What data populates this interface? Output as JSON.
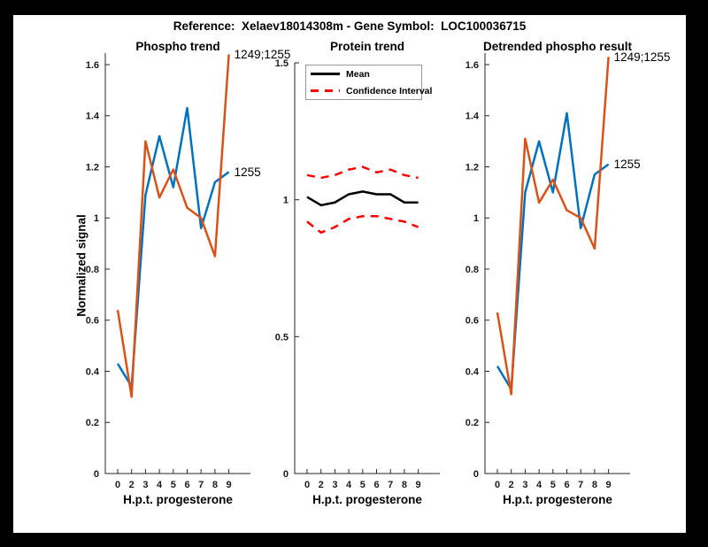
{
  "figure_title": "Reference:  Xelaev18014308m - Gene Symbol:  LOC100036715",
  "colors": {
    "blue": "#0072BD",
    "orange": "#D95319",
    "red": "#FF0000",
    "black": "#000000",
    "axis": "#262626",
    "frame": "#000000",
    "background": "#FFFFFF"
  },
  "legend": {
    "position": "northwest",
    "entries": [
      {
        "label": "Mean",
        "color_key": "black",
        "style": "solid"
      },
      {
        "label": "Confidence Interval",
        "color_key": "red",
        "style": "dashed"
      }
    ]
  },
  "chart_data": [
    {
      "type": "line",
      "title": "Phospho trend",
      "xlabel": "H.p.t. progesterone",
      "ylabel": "Normalized signal",
      "x": [
        0,
        2,
        3,
        4,
        5,
        6,
        7,
        8,
        9
      ],
      "x_tick_labels": [
        "0",
        "2",
        "3",
        "4",
        "5",
        "6",
        "7",
        "8",
        "9"
      ],
      "y_ticks": [
        0,
        0.2,
        0.4,
        0.6,
        0.8,
        1,
        1.2,
        1.4,
        1.6
      ],
      "y_tick_labels": [
        "0",
        "0.2",
        "0.4",
        "0.6",
        "0.8",
        "1",
        "1.2",
        "1.4",
        "1.6"
      ],
      "ylim": [
        0,
        1.645
      ],
      "grid": false,
      "series": [
        {
          "name": "phospho-site-1255",
          "color_key": "blue",
          "style": "solid",
          "end_label": "1255",
          "values": [
            0.43,
            0.34,
            1.09,
            1.32,
            1.12,
            1.43,
            0.96,
            1.14,
            1.18
          ]
        },
        {
          "name": "phospho-site-1249-1255",
          "color_key": "orange",
          "style": "solid",
          "end_label": "1249;1255",
          "values": [
            0.64,
            0.3,
            1.3,
            1.08,
            1.19,
            1.04,
            1.0,
            0.85,
            1.64
          ]
        }
      ]
    },
    {
      "type": "line",
      "title": "Protein trend",
      "xlabel": "H.p.t. progesterone",
      "ylabel": "",
      "x": [
        0,
        2,
        3,
        4,
        5,
        6,
        7,
        8,
        9
      ],
      "x_tick_labels": [
        "0",
        "2",
        "3",
        "4",
        "5",
        "6",
        "7",
        "8",
        "9"
      ],
      "y_ticks": [
        0,
        0.5,
        1,
        1.5
      ],
      "y_tick_labels": [
        "0",
        "0.5",
        "1",
        "1.5"
      ],
      "ylim": [
        0,
        1.5
      ],
      "grid": false,
      "series": [
        {
          "name": "protein-mean",
          "color_key": "black",
          "style": "solid",
          "end_label": "",
          "values": [
            1.01,
            0.98,
            0.99,
            1.02,
            1.03,
            1.02,
            1.02,
            0.99,
            0.99
          ]
        },
        {
          "name": "confidence-interval-upper",
          "color_key": "red",
          "style": "dashed",
          "end_label": "",
          "values": [
            1.09,
            1.08,
            1.09,
            1.11,
            1.12,
            1.1,
            1.11,
            1.09,
            1.08
          ]
        },
        {
          "name": "confidence-interval-lower",
          "color_key": "red",
          "style": "dashed",
          "end_label": "",
          "values": [
            0.92,
            0.88,
            0.9,
            0.93,
            0.94,
            0.94,
            0.93,
            0.92,
            0.9
          ]
        }
      ]
    },
    {
      "type": "line",
      "title": "Detrended phospho result",
      "xlabel": "H.p.t. progesterone",
      "ylabel": "",
      "x": [
        0,
        2,
        3,
        4,
        5,
        6,
        7,
        8,
        9
      ],
      "x_tick_labels": [
        "0",
        "2",
        "3",
        "4",
        "5",
        "6",
        "7",
        "8",
        "9"
      ],
      "y_ticks": [
        0,
        0.2,
        0.4,
        0.6,
        0.8,
        1,
        1.2,
        1.4,
        1.6
      ],
      "y_tick_labels": [
        "0",
        "0.2",
        "0.4",
        "0.6",
        "0.8",
        "1",
        "1.2",
        "1.4",
        "1.6"
      ],
      "ylim": [
        0,
        1.645
      ],
      "grid": false,
      "series": [
        {
          "name": "detrended-site-1255",
          "color_key": "blue",
          "style": "solid",
          "end_label": "1255",
          "values": [
            0.42,
            0.33,
            1.1,
            1.3,
            1.1,
            1.41,
            0.96,
            1.17,
            1.21
          ]
        },
        {
          "name": "detrended-site-1249-1255",
          "color_key": "orange",
          "style": "solid",
          "end_label": "1249;1255",
          "values": [
            0.63,
            0.31,
            1.31,
            1.06,
            1.15,
            1.03,
            1.0,
            0.88,
            1.63
          ]
        }
      ]
    }
  ]
}
